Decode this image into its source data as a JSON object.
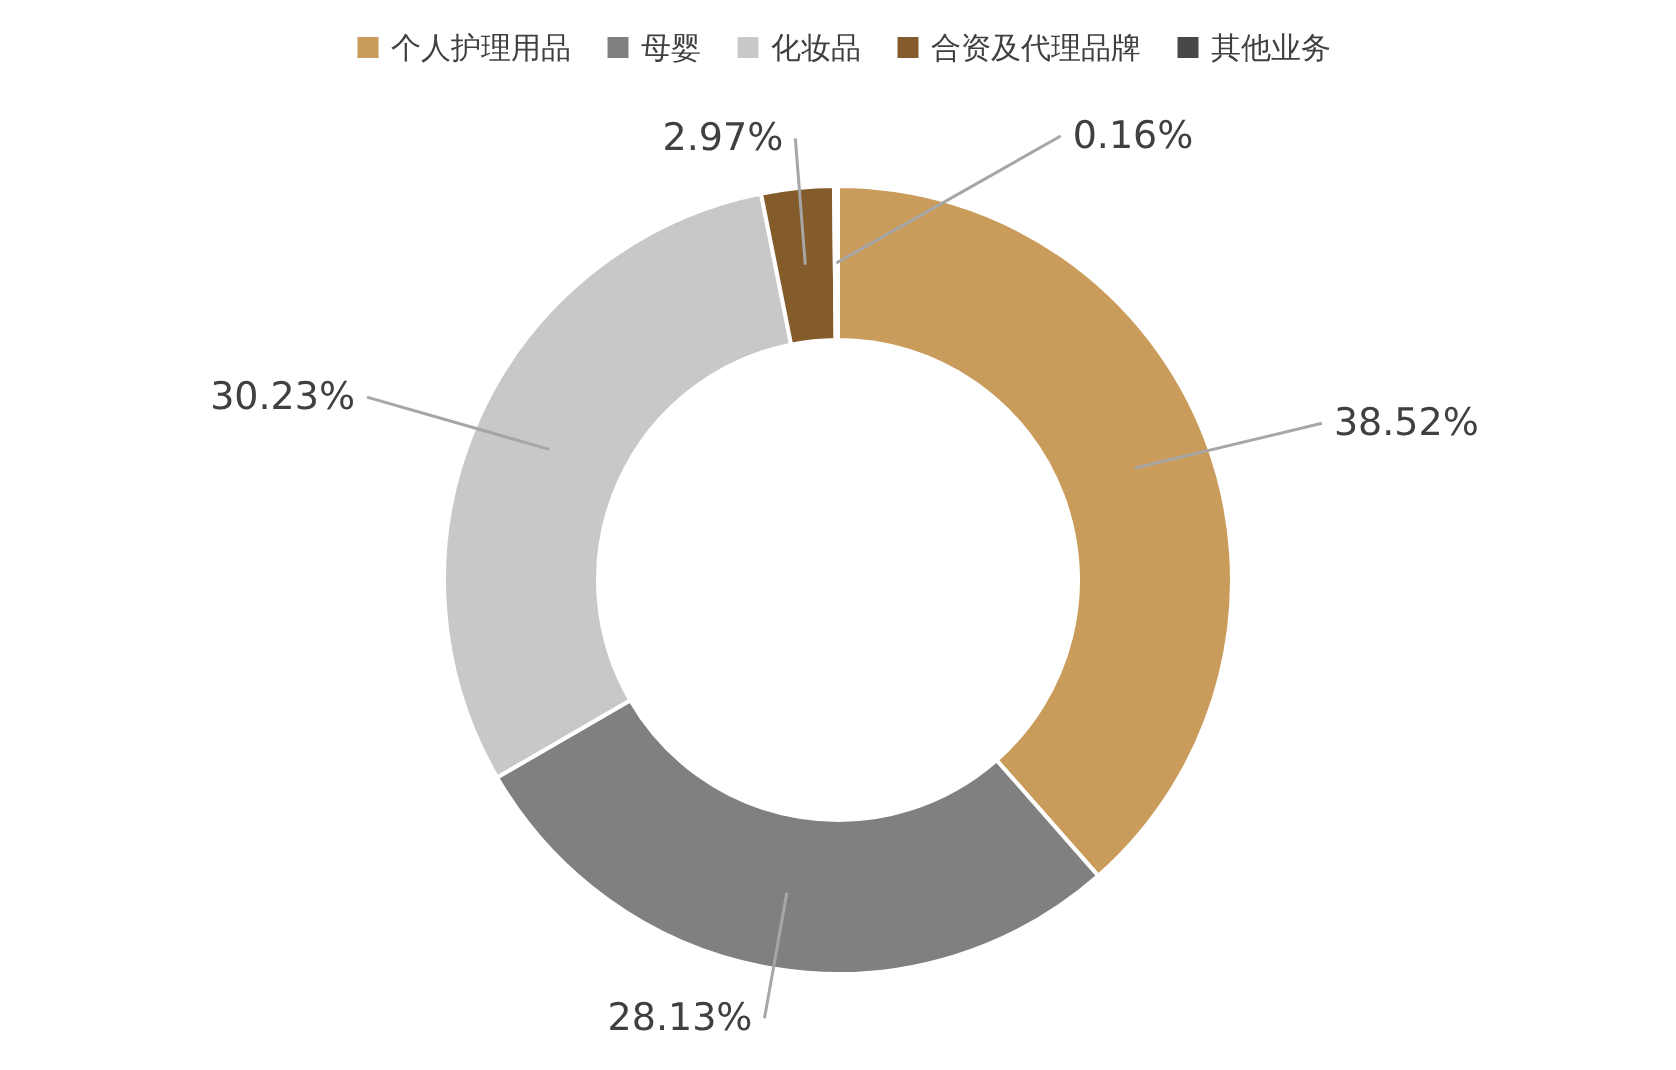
{
  "chart_data": {
    "type": "donut",
    "categories": [
      "个人护理用品",
      "母婴",
      "化妆品",
      "合资及代理品牌",
      "其他业务"
    ],
    "values": [
      38.52,
      28.13,
      30.23,
      2.97,
      0.16
    ],
    "colors": [
      "#c99c5b",
      "#808080",
      "#c8c8c8",
      "#845b2b",
      "#474747"
    ],
    "value_labels": [
      "38.52%",
      "28.13%",
      "30.23%",
      "2.97%",
      "0.16%"
    ],
    "legend": "top"
  }
}
